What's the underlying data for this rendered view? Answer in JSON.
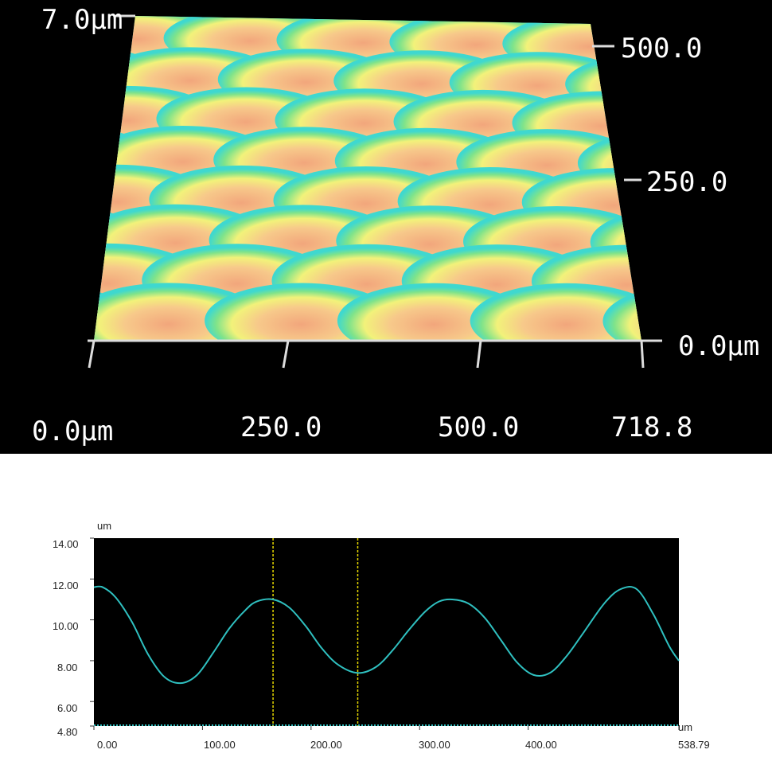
{
  "chart_data": [
    {
      "type": "surface-3d",
      "z_label": "7.0μm",
      "x_ticks": [
        "0.0μm",
        "250.0",
        "500.0",
        "718.8"
      ],
      "y_ticks": [
        "500.0",
        "250.0",
        "0.0μm"
      ],
      "x_range": [
        0,
        718.8
      ],
      "y_range": [
        0,
        500
      ],
      "z_max": 7.0,
      "colormap": [
        "#3a7ad8",
        "#3fd8cf",
        "#7fe38a",
        "#f2f27a",
        "#f7c98a",
        "#f2a67c"
      ],
      "background": "#000000",
      "pattern": {
        "columns_per_row": 5,
        "rows": 8,
        "arrangement": "staggered lens array"
      }
    },
    {
      "type": "line",
      "x_unit": "um",
      "y_unit": "um",
      "x_ticks": [
        "0.00",
        "100.00",
        "200.00",
        "300.00",
        "400.00",
        "538.79"
      ],
      "y_ticks": [
        "14.00",
        "12.00",
        "10.00",
        "8.00",
        "6.00",
        "4.80"
      ],
      "xlim": [
        0,
        538.79
      ],
      "ylim": [
        4.8,
        14.0
      ],
      "line_color": "#2fc0c0",
      "marker_color": "#e6d800",
      "background": "#000000",
      "cursors_x": [
        165,
        243
      ],
      "series": [
        {
          "x": [
            0,
            8,
            20,
            35,
            50,
            65,
            80,
            95,
            110,
            125,
            140,
            150,
            165,
            180,
            195,
            210,
            225,
            243,
            260,
            275,
            290,
            305,
            318,
            330,
            345,
            360,
            375,
            390,
            405,
            420,
            435,
            450,
            470,
            485,
            500,
            515,
            530,
            538.79
          ],
          "y": [
            11.6,
            11.6,
            11.1,
            9.9,
            8.3,
            7.2,
            6.9,
            7.3,
            8.4,
            9.6,
            10.5,
            10.9,
            11.0,
            10.6,
            9.7,
            8.6,
            7.8,
            7.4,
            7.7,
            8.5,
            9.5,
            10.4,
            10.9,
            11.0,
            10.8,
            10.1,
            9.0,
            7.9,
            7.3,
            7.4,
            8.2,
            9.3,
            10.8,
            11.5,
            11.5,
            10.3,
            8.7,
            8.0
          ]
        }
      ]
    }
  ]
}
